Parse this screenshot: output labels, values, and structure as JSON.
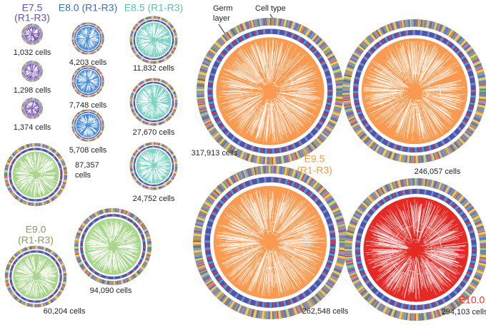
{
  "annotations": {
    "germ_layer": [
      "Germ",
      "layer"
    ],
    "cell_type": "Cell type"
  },
  "groups": [
    {
      "label": "E7.5",
      "sub": "(R1-R3)",
      "trees": [
        {
          "cells": "1,032 cells"
        },
        {
          "cells": "1,298 cells"
        },
        {
          "cells": "1,374 cells"
        }
      ]
    },
    {
      "label": "E8.0 (R1-R3)",
      "trees": [
        {
          "cells": "4,203 cells"
        },
        {
          "cells": "7,748 cells"
        },
        {
          "cells": "5,708 cells"
        }
      ]
    },
    {
      "label": "E8.5 (R1-R3)",
      "trees": [
        {
          "cells": "11,832 cells"
        },
        {
          "cells": "27,670 cells"
        },
        {
          "cells": "24,752 cells"
        }
      ]
    },
    {
      "label": "E9.0",
      "sub": "(R1-R3)",
      "trees": [
        {
          "cells": [
            "87,357",
            "cells"
          ]
        },
        {
          "cells": "60,204 cells"
        },
        {
          "cells": "94,090 cells"
        }
      ]
    },
    {
      "label": "E9.5",
      "sub": "(R1-R3)",
      "trees": [
        {
          "cells": "317,913 cells"
        },
        {
          "cells": "246,057 cells"
        },
        {
          "cells": "262,548 cells"
        }
      ]
    },
    {
      "label": "E10.0",
      "trees": [
        {
          "cells": "294,103 cells"
        }
      ]
    }
  ]
}
